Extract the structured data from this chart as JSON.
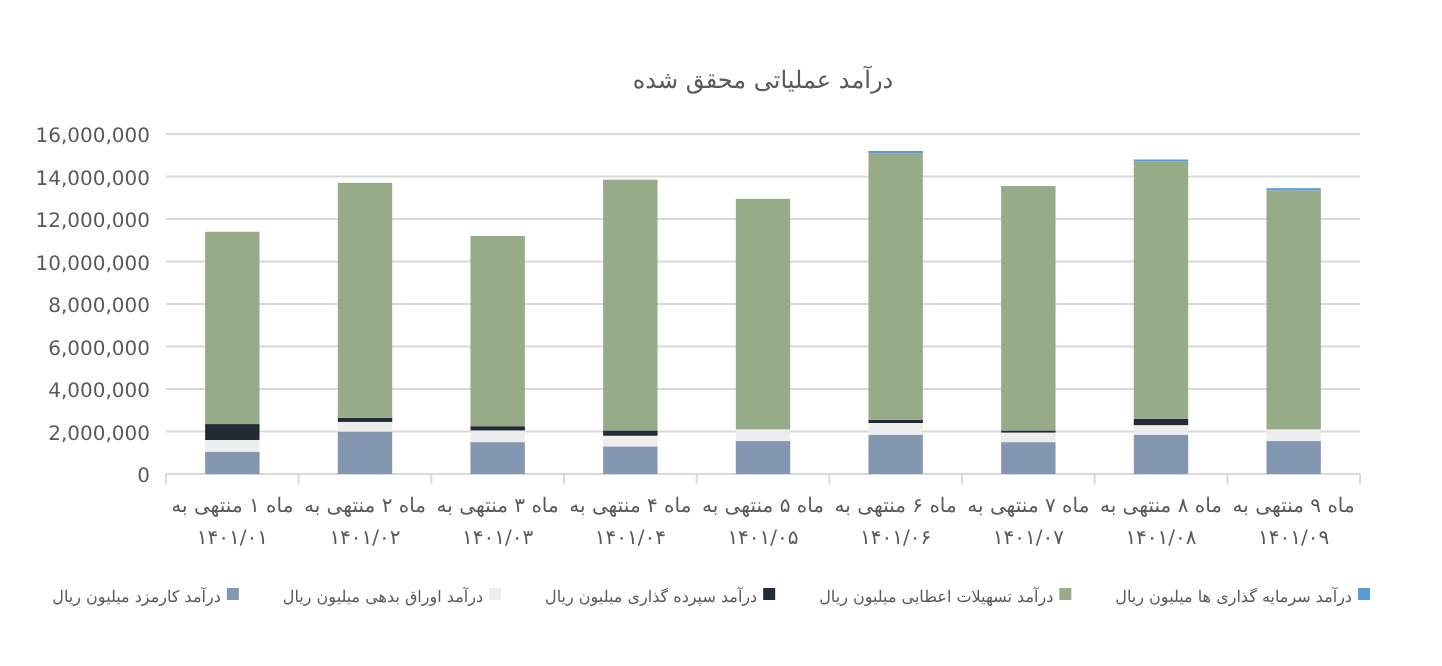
{
  "chart_data": {
    "type": "bar",
    "title": "درآمد عملیاتی محقق شده",
    "categories": [
      "ماه ۱ منتهی به\n۱۴۰۱/۰۱",
      "ماه ۲ منتهی به\n۱۴۰۱/۰۲",
      "ماه ۳ منتهی به\n۱۴۰۱/۰۳",
      "ماه ۴ منتهی به\n۱۴۰۱/۰۴",
      "ماه ۵ منتهی به\n۱۴۰۱/۰۵",
      "ماه ۶ منتهی به\n۱۴۰۱/۰۶",
      "ماه ۷ منتهی به\n۱۴۰۱/۰۷",
      "ماه ۸ منتهی به\n۱۴۰۱/۰۸",
      "ماه ۹ منتهی به\n۱۴۰۱/۰۹"
    ],
    "stacked": true,
    "series": [
      {
        "name": "درآمد کارمزد میلیون ریال",
        "color": "#8497b0",
        "values": [
          1050000,
          2000000,
          1500000,
          1300000,
          1550000,
          1850000,
          1500000,
          1850000,
          1550000
        ]
      },
      {
        "name": "درآمد اوراق بدهی میلیون ریال",
        "color": "#ededed",
        "values": [
          550000,
          450000,
          550000,
          500000,
          550000,
          550000,
          450000,
          450000,
          550000
        ]
      },
      {
        "name": "درآمد سپرده گذاری میلیون ریال",
        "color": "#222a35",
        "values": [
          750000,
          200000,
          200000,
          250000,
          null,
          150000,
          100000,
          300000,
          null
        ]
      },
      {
        "name": "درآمد تسهیلات اعطایی میلیون ریال",
        "color": "#97ab88",
        "values": [
          9050000,
          11050000,
          8950000,
          11800000,
          10850000,
          12550000,
          11500000,
          12100000,
          11250000
        ]
      },
      {
        "name": "درآمد سرمایه گذاری ها میلیون ریال",
        "color": "#5b9bd5",
        "values": [
          null,
          null,
          null,
          null,
          null,
          100000,
          null,
          100000,
          100000
        ]
      }
    ],
    "ylim": [
      0,
      16000000
    ],
    "yticks": [
      {
        "value": 0,
        "label": "0"
      },
      {
        "value": 2000000,
        "label": "2,000,000"
      },
      {
        "value": 4000000,
        "label": "4,000,000"
      },
      {
        "value": 6000000,
        "label": "6,000,000"
      },
      {
        "value": 8000000,
        "label": "8,000,000"
      },
      {
        "value": 10000000,
        "label": "10,000,000"
      },
      {
        "value": 12000000,
        "label": "12,000,000"
      },
      {
        "value": 14000000,
        "label": "14,000,000"
      },
      {
        "value": 16000000,
        "label": "16,000,000"
      }
    ],
    "grid": "y",
    "legend": "bottom"
  }
}
